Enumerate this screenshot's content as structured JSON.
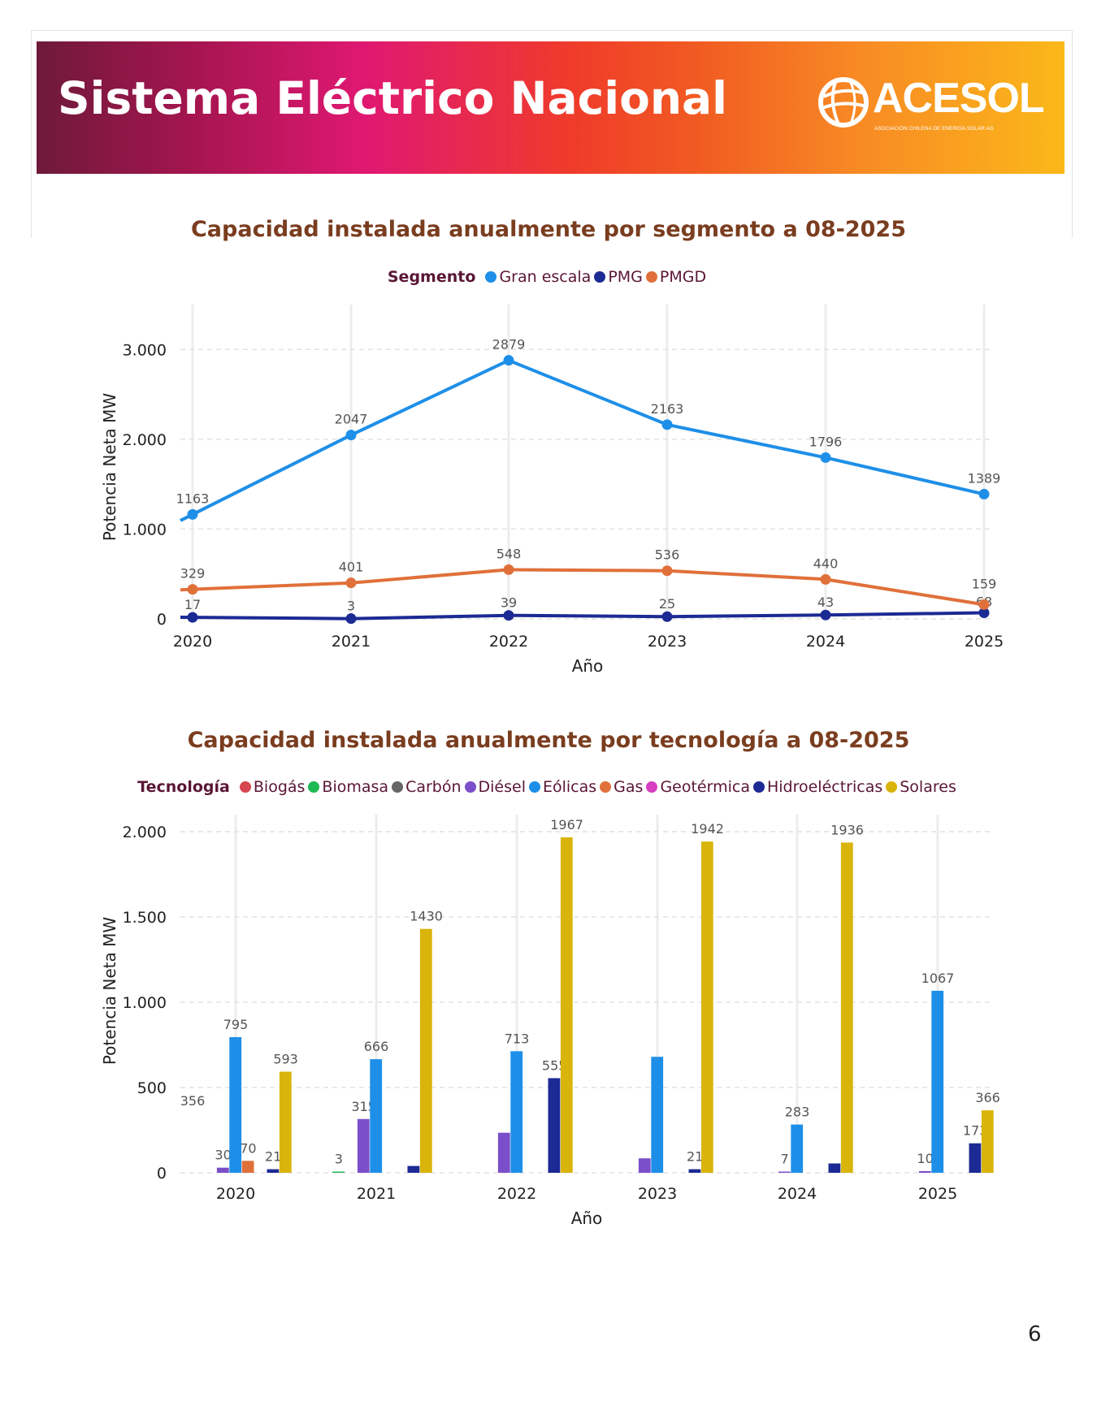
{
  "header": {
    "title": "Sistema Eléctrico Nacional",
    "logo_text": "ACESOL",
    "logo_subtext": "ASOCIACIÓN CHILENA DE ENERGÍA SOLAR AG"
  },
  "colors": {
    "banner_gradient": [
      "#6e1a3a",
      "#e01872",
      "#f15a22",
      "#fbb819"
    ],
    "title_color": "#7a3d1f"
  },
  "page_number": "6",
  "chart_data": [
    {
      "type": "line",
      "title": "Capacidad instalada anualmente por segmento a 08-2025",
      "legend_title": "Segmento",
      "xlabel": "Año",
      "ylabel": "Potencia Neta MW",
      "x": [
        "2020",
        "2021",
        "2022",
        "2023",
        "2024",
        "2025"
      ],
      "ylim": [
        0,
        3500
      ],
      "yticks": [
        0,
        1000,
        2000,
        3000
      ],
      "ytick_labels": [
        "0",
        "1.000",
        "2.000",
        "3.000"
      ],
      "grid": true,
      "legend_position": "top",
      "series": [
        {
          "name": "Gran escala",
          "color": "#1e8fe8",
          "values": [
            1163,
            2047,
            2879,
            2163,
            1796,
            1389
          ]
        },
        {
          "name": "PMG",
          "color": "#1c2a94",
          "values": [
            17,
            3,
            39,
            25,
            43,
            68
          ]
        },
        {
          "name": "PMGD",
          "color": "#e0703a",
          "values": [
            329,
            401,
            548,
            536,
            440,
            159
          ]
        }
      ]
    },
    {
      "type": "bar",
      "title": "Capacidad instalada anualmente por tecnología a 08-2025",
      "legend_title": "Tecnología",
      "xlabel": "Año",
      "ylabel": "Potencia Neta MW",
      "categories": [
        "2020",
        "2021",
        "2022",
        "2023",
        "2024",
        "2025"
      ],
      "ylim": [
        0,
        2100
      ],
      "yticks": [
        0,
        500,
        1000,
        1500,
        2000
      ],
      "ytick_labels": [
        "0",
        "500",
        "1.000",
        "1.500",
        "2.000"
      ],
      "grid": true,
      "legend_position": "top",
      "series": [
        {
          "name": "Biogás",
          "color": "#d64550",
          "values": [
            null,
            null,
            null,
            null,
            null,
            null
          ],
          "labels": [
            null,
            null,
            null,
            null,
            null,
            null
          ]
        },
        {
          "name": "Biomasa",
          "color": "#1db954",
          "values": [
            null,
            3,
            null,
            null,
            null,
            null
          ],
          "labels": [
            null,
            "3",
            null,
            null,
            null,
            null
          ]
        },
        {
          "name": "Carbón",
          "color": "#666666",
          "values": [
            null,
            null,
            null,
            null,
            null,
            null
          ],
          "labels": [
            null,
            null,
            null,
            null,
            null,
            null
          ]
        },
        {
          "name": "Diésel",
          "color": "#7b4fc9",
          "values": [
            30,
            315,
            235,
            85,
            7,
            10
          ],
          "labels": [
            "30",
            "315",
            null,
            null,
            "7",
            "10"
          ]
        },
        {
          "name": "Eólicas",
          "color": "#1e8fe8",
          "values": [
            795,
            666,
            713,
            680,
            283,
            1067
          ],
          "labels": [
            "795",
            "666",
            "713",
            null,
            "283",
            "1067"
          ]
        },
        {
          "name": "Gas",
          "color": "#e0703a",
          "values": [
            70,
            null,
            null,
            null,
            null,
            null
          ],
          "labels": [
            "70",
            null,
            null,
            null,
            null,
            null
          ]
        },
        {
          "name": "Geotérmica",
          "color": "#d63fc2",
          "values": [
            null,
            null,
            null,
            null,
            null,
            null
          ],
          "labels": [
            null,
            null,
            null,
            null,
            null,
            null
          ]
        },
        {
          "name": "Hidroeléctricas",
          "color": "#1c2a94",
          "values": [
            21,
            40,
            555,
            21,
            55,
            173
          ],
          "labels": [
            "21",
            null,
            "555",
            "21",
            null,
            "173"
          ]
        },
        {
          "name": "Solares",
          "color": "#d9b40a",
          "values": [
            593,
            1430,
            1967,
            1942,
            1936,
            366
          ],
          "labels": [
            "593",
            "1430",
            "1967",
            "1942",
            "1936",
            "366"
          ]
        }
      ],
      "annotations": [
        {
          "text": "356",
          "category": "2020"
        }
      ]
    }
  ]
}
